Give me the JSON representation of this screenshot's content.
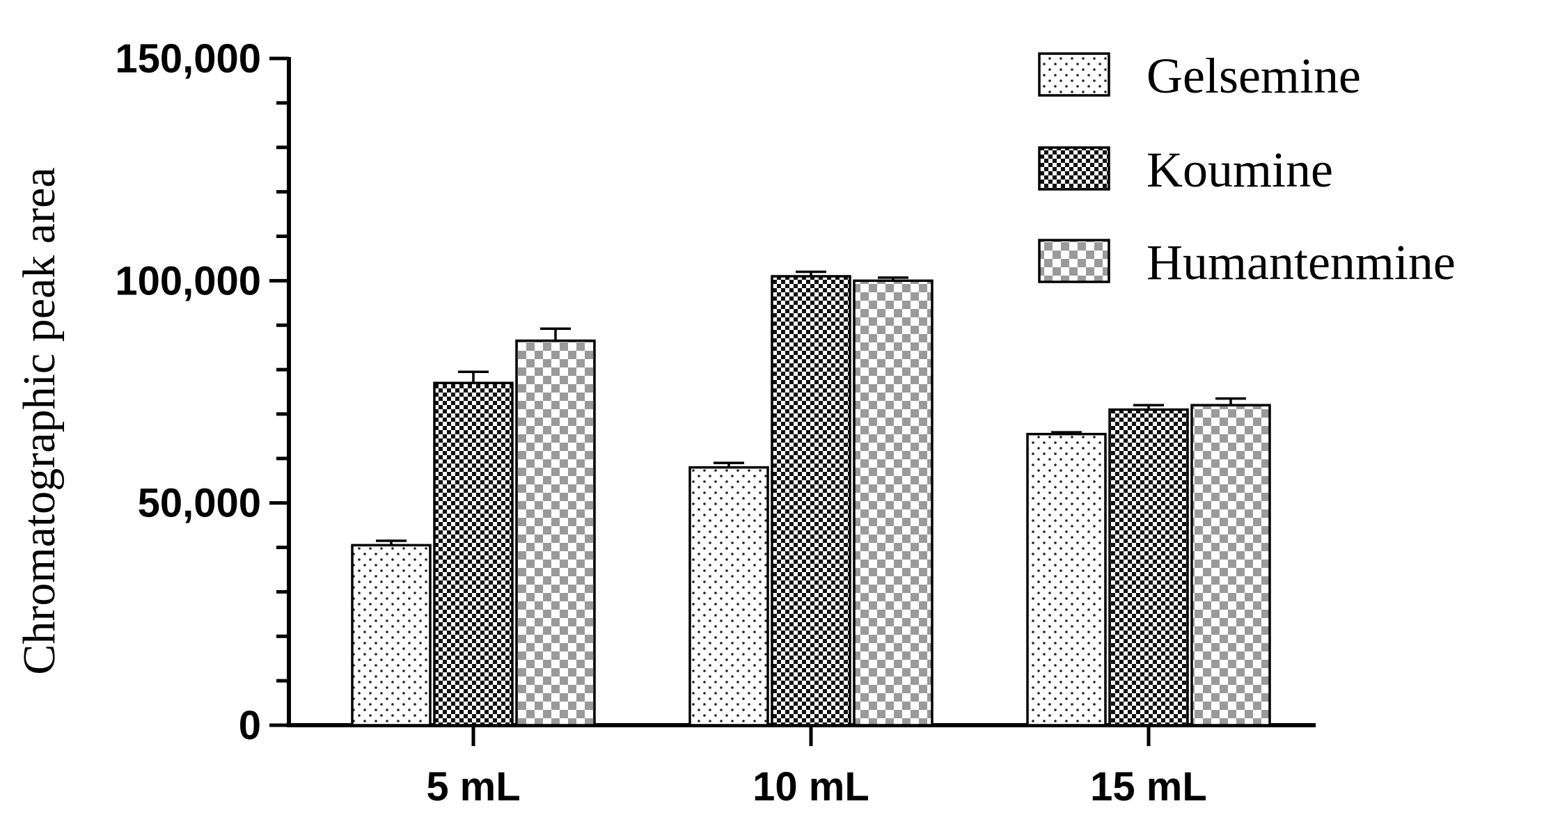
{
  "chart_data": {
    "type": "bar",
    "title": "",
    "xlabel": "",
    "ylabel": "Chromatographic peak area",
    "categories": [
      "5 mL",
      "10 mL",
      "15 mL"
    ],
    "series": [
      {
        "name": "Gelsemine",
        "values": [
          40500,
          58000,
          65500
        ],
        "errors": [
          1000,
          1000,
          400
        ],
        "pattern": "dots"
      },
      {
        "name": "Koumine",
        "values": [
          77000,
          101000,
          71000
        ],
        "errors": [
          2500,
          1000,
          1000
        ],
        "pattern": "fine-checker"
      },
      {
        "name": "Humantenmine",
        "values": [
          86500,
          100000,
          72000
        ],
        "errors": [
          2700,
          700,
          1500
        ],
        "pattern": "coarse-checker"
      }
    ],
    "ylim": [
      0,
      150000
    ],
    "yticks": [
      0,
      50000,
      100000,
      150000
    ],
    "ytick_labels": [
      "0",
      "50,000",
      "100,000",
      "150,000"
    ],
    "grid": false,
    "legend_position": "top-right",
    "colors": {
      "axis": "#000000",
      "coarse_checker_fill": "#9a9a9a",
      "fine_checker_fill": "#111111",
      "dot_fill": "#222222",
      "bar_background": "#ffffff"
    }
  }
}
